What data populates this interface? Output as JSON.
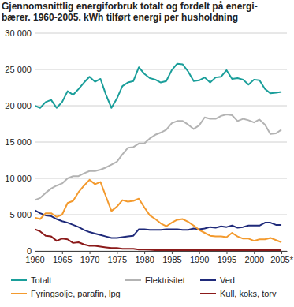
{
  "chart_data": {
    "type": "line",
    "title": "Gjennomsnittlig energiforbruk totalt og fordelt på energi-\nbærer. 1960-2005. kWh tilført energi per husholdning",
    "x": [
      1960,
      1961,
      1962,
      1963,
      1964,
      1965,
      1966,
      1967,
      1968,
      1969,
      1970,
      1971,
      1972,
      1973,
      1974,
      1975,
      1976,
      1977,
      1978,
      1979,
      1980,
      1981,
      1982,
      1983,
      1984,
      1985,
      1986,
      1987,
      1988,
      1989,
      1990,
      1991,
      1992,
      1993,
      1994,
      1995,
      1996,
      1997,
      1998,
      1999,
      2000,
      2001,
      2002,
      2003,
      2004,
      2005
    ],
    "xlim": [
      1960,
      2006
    ],
    "xticks": [
      1960,
      1965,
      1970,
      1975,
      1980,
      1985,
      1990,
      1995,
      2000,
      {
        "value": 2005,
        "label": "2005*"
      }
    ],
    "ylim": [
      0,
      30000
    ],
    "yticks": [
      0,
      {
        "value": 5000,
        "label": "5 000"
      },
      {
        "value": 10000,
        "label": "10 000"
      },
      {
        "value": 15000,
        "label": "15 000"
      },
      {
        "value": 20000,
        "label": "20 000"
      },
      {
        "value": 25000,
        "label": "25 000"
      },
      {
        "value": 30000,
        "label": "30 000"
      }
    ],
    "grid": true,
    "legend": "bottom",
    "series": [
      {
        "name": "Totalt",
        "color": "#1a9e9a",
        "values": [
          20000,
          19700,
          20500,
          20800,
          19700,
          20500,
          22000,
          21500,
          22300,
          23200,
          24000,
          23300,
          23700,
          21500,
          19700,
          21000,
          22700,
          23200,
          23400,
          25300,
          24400,
          23800,
          23600,
          23200,
          23400,
          24900,
          25800,
          25700,
          24700,
          23400,
          23500,
          23900,
          23200,
          23900,
          24000,
          24900,
          23700,
          23800,
          23600,
          22900,
          23600,
          23500,
          22300,
          21700,
          21800,
          21900
        ]
      },
      {
        "name": "Elektrisitet",
        "color": "#b3b3b3",
        "values": [
          7000,
          7300,
          8000,
          8600,
          9000,
          9300,
          10000,
          10300,
          10300,
          10700,
          11000,
          11000,
          11200,
          11500,
          11900,
          12300,
          13300,
          14200,
          14300,
          14800,
          14800,
          15500,
          16000,
          16300,
          16700,
          17600,
          17900,
          17900,
          17400,
          16800,
          17300,
          18400,
          18200,
          18200,
          18600,
          18800,
          18700,
          17900,
          18200,
          18000,
          17700,
          18100,
          17400,
          16100,
          16200,
          16700
        ]
      },
      {
        "name": "Ved",
        "color": "#1f2a7a",
        "values": [
          5600,
          5200,
          4900,
          4800,
          4400,
          4100,
          3900,
          3600,
          3300,
          2900,
          2600,
          2400,
          2200,
          2000,
          1800,
          1800,
          1900,
          2000,
          2100,
          3000,
          3000,
          2900,
          2900,
          2900,
          3000,
          3000,
          3000,
          2900,
          2900,
          3100,
          3000,
          3100,
          3300,
          3200,
          3400,
          3300,
          3500,
          3200,
          3300,
          3500,
          3500,
          3500,
          3900,
          3900,
          3600,
          3600
        ]
      },
      {
        "name": "Fyringsolje, parafin, lpg",
        "color": "#f39a2e",
        "values": [
          4600,
          4400,
          5200,
          5200,
          4700,
          5000,
          6600,
          6900,
          8100,
          9000,
          9800,
          9200,
          9500,
          7500,
          5500,
          6100,
          7000,
          6800,
          6900,
          7200,
          6000,
          4900,
          4400,
          3800,
          3400,
          3900,
          4300,
          4400,
          4000,
          3500,
          2900,
          2500,
          2100,
          2000,
          2000,
          1900,
          2500,
          2000,
          1700,
          1700,
          1400,
          1600,
          1600,
          1800,
          1500,
          1200
        ]
      },
      {
        "name": "Kull, koks, torv",
        "color": "#8b1a1a",
        "values": [
          3000,
          2700,
          2100,
          2000,
          1400,
          1700,
          1600,
          1100,
          1200,
          900,
          700,
          700,
          600,
          500,
          400,
          400,
          300,
          300,
          300,
          200,
          200,
          150,
          100,
          100,
          100,
          100,
          100,
          100,
          100,
          100,
          100,
          100,
          100,
          100,
          100,
          100,
          100,
          100,
          100,
          100,
          100,
          100,
          100,
          100,
          100,
          100
        ]
      }
    ]
  }
}
